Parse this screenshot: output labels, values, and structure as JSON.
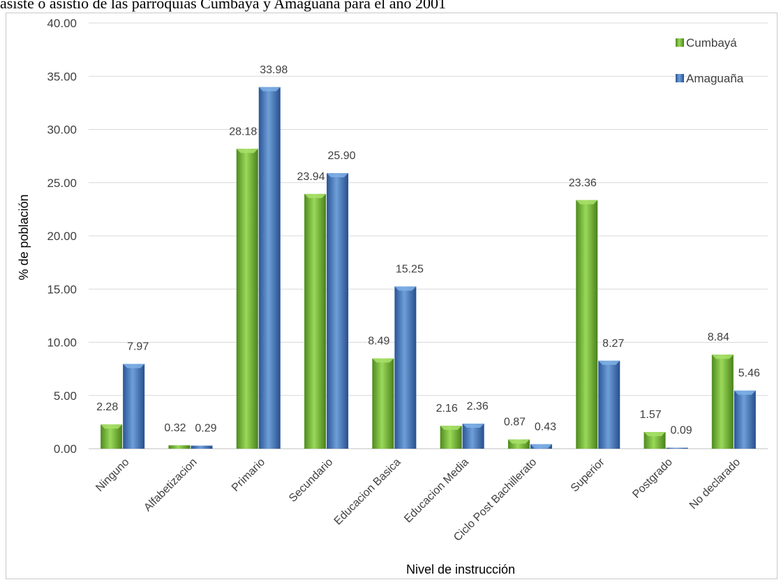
{
  "caption": "asiste o asistió de las parroquias Cumbayá y Amaguaña para el año 2001",
  "chart_data": {
    "type": "bar",
    "title": "",
    "xlabel": "Nivel de instrucción",
    "ylabel": "% de población",
    "ylim": [
      0,
      40
    ],
    "yticks": [
      "0.00",
      "5.00",
      "10.00",
      "15.00",
      "20.00",
      "25.00",
      "30.00",
      "35.00",
      "40.00"
    ],
    "grid": true,
    "legend_position": "top-right",
    "categories": [
      "Ninguno",
      "Alfabetizacion",
      "Primario",
      "Secundario",
      "Educacion Basica",
      "Educacion Media",
      "Ciclo Post Bachillerato",
      "Superior",
      "Postgrado",
      "No declarado"
    ],
    "series": [
      {
        "name": "Cumbayá",
        "color": "#7ac143",
        "values": [
          2.28,
          0.32,
          28.18,
          23.94,
          8.49,
          2.16,
          0.87,
          23.36,
          1.57,
          8.84
        ],
        "labels": [
          "2.28",
          "0.32",
          "28.18",
          "23.94",
          "8.49",
          "2.16",
          "0.87",
          "23.36",
          "1.57",
          "8.84"
        ]
      },
      {
        "name": "Amaguaña",
        "color": "#4a7ebb",
        "values": [
          7.97,
          0.29,
          33.98,
          25.9,
          15.25,
          2.36,
          0.43,
          8.27,
          0.09,
          5.46
        ],
        "labels": [
          "7.97",
          "0.29",
          "33.98",
          "25.90",
          "15.25",
          "2.36",
          "0.43",
          "8.27",
          "0.09",
          "5.46"
        ]
      }
    ]
  }
}
